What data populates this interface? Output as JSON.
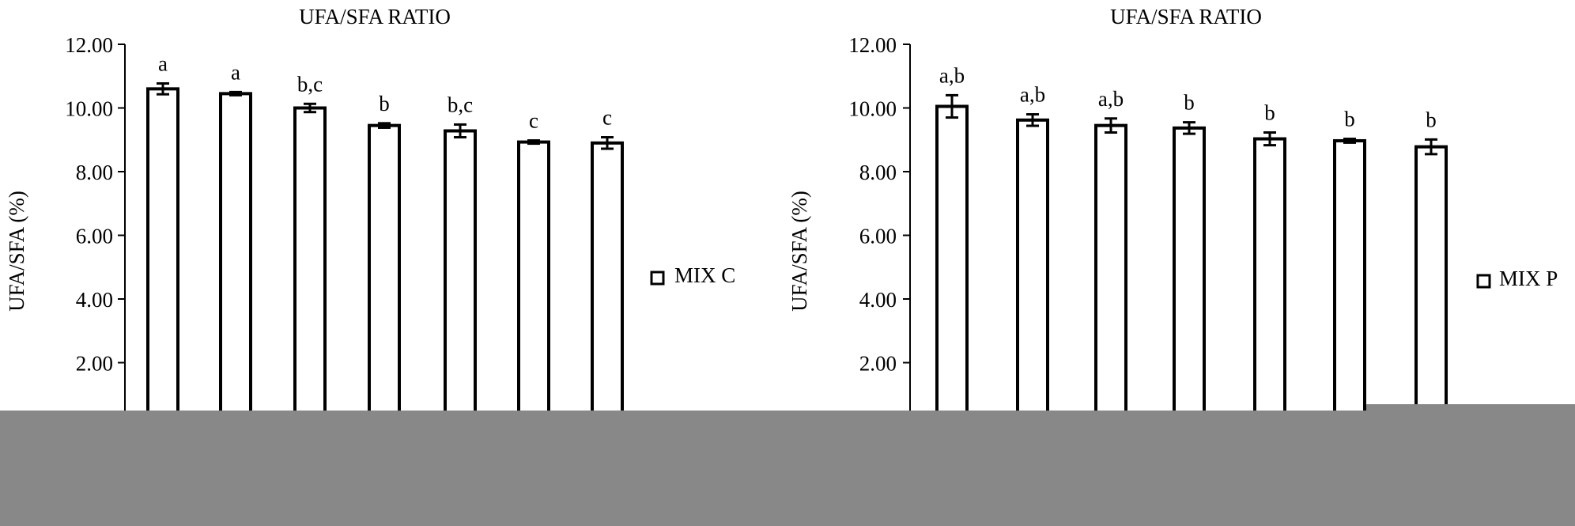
{
  "chart_data": [
    {
      "type": "bar",
      "title": "UFA/SFA RATIO",
      "ylabel": "UFA/SFA (%)",
      "xlabel": "",
      "ylim": [
        0,
        12
      ],
      "yticks": [
        "12.00",
        "10.00",
        "8.00",
        "6.00",
        "4.00",
        "2.00"
      ],
      "grid": false,
      "legend_position": "right",
      "series": [
        {
          "name": "MIX C",
          "values": [
            10.6,
            10.45,
            10.0,
            9.45,
            9.28,
            8.93,
            8.9
          ],
          "errors": [
            0.17,
            0.05,
            0.13,
            0.07,
            0.2,
            0.05,
            0.18
          ],
          "labels": [
            "a",
            "a",
            "b,c",
            "b",
            "b,c",
            "c",
            "c"
          ]
        }
      ],
      "colors": {
        "bar_fill": "#ffffff",
        "bar_stroke": "#000000"
      }
    },
    {
      "type": "bar",
      "title": "UFA/SFA RATIO",
      "ylabel": "UFA/SFA (%)",
      "xlabel": "",
      "ylim": [
        0,
        12
      ],
      "yticks": [
        "12.00",
        "10.00",
        "8.00",
        "6.00",
        "4.00",
        "2.00"
      ],
      "grid": false,
      "legend_position": "right",
      "series": [
        {
          "name": "MIX P",
          "values": [
            10.05,
            9.62,
            9.45,
            9.37,
            9.03,
            8.97,
            8.78
          ],
          "errors": [
            0.35,
            0.18,
            0.22,
            0.18,
            0.2,
            0.06,
            0.23
          ],
          "labels": [
            "a,b",
            "a,b",
            "a,b",
            "b",
            "b",
            "b",
            "b"
          ]
        }
      ],
      "colors": {
        "bar_fill": "#ffffff",
        "bar_stroke": "#000000"
      }
    }
  ]
}
